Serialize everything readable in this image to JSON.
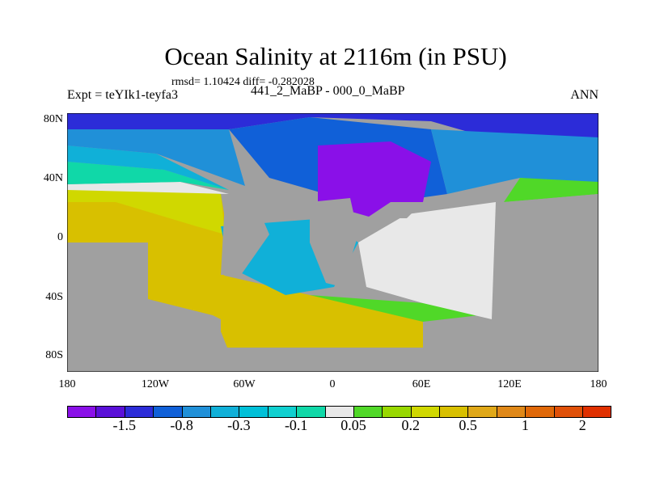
{
  "title": "Ocean Salinity at 2116m (in PSU)",
  "stats": "rmsd= 1.10424 diff= -0.282028",
  "subtitle": "441_2_MaBP - 000_0_MaBP",
  "expt": "Expt = teYIk1-teyfa3",
  "season": "ANN",
  "y_ticks": [
    "80N",
    "40N",
    "0",
    "40S",
    "80S"
  ],
  "x_ticks": [
    "180",
    "120W",
    "60W",
    "0",
    "60E",
    "120E",
    "180"
  ],
  "colorbar": {
    "colors": [
      "#8A10E8",
      "#5A10D8",
      "#2C2CD8",
      "#1060D8",
      "#2090D8",
      "#10B0D8",
      "#00C0D8",
      "#10D0D0",
      "#10D8A8",
      "#E8E8E8",
      "#50D828",
      "#98D800",
      "#D0D800",
      "#D8C000",
      "#E0A818",
      "#E08818",
      "#E06808",
      "#E05008",
      "#E03000"
    ],
    "labels": [
      "-1.5",
      "-0.8",
      "-0.3",
      "-0.1",
      "0.05",
      "0.2",
      "0.5",
      "1",
      "2"
    ]
  }
}
